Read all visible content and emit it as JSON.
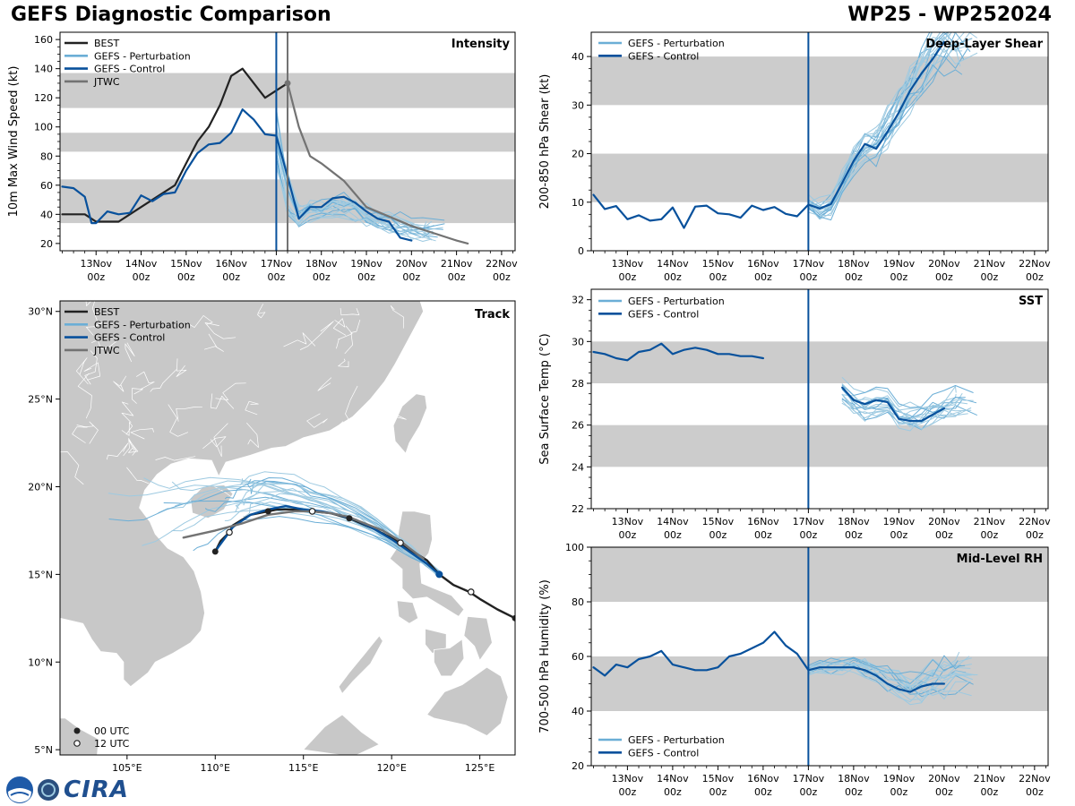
{
  "header": {
    "title": "GEFS Diagnostic Comparison",
    "storm": "WP25 - WP252024"
  },
  "logo": {
    "text": "CIRA"
  },
  "colors": {
    "best": "#222222",
    "pert": "#6baed6",
    "pert_thin": "#9ecae1",
    "control": "#08519c",
    "jtwc": "#737373",
    "band": "#cccccc",
    "land": "#c8c8c8"
  },
  "time_axis": {
    "ticks": [
      13,
      14,
      15,
      16,
      17,
      18,
      19,
      20,
      21,
      22
    ],
    "labels": [
      "13Nov",
      "14Nov",
      "15Nov",
      "16Nov",
      "17Nov",
      "18Nov",
      "19Nov",
      "20Nov",
      "21Nov",
      "22Nov"
    ],
    "sublabel": "00z",
    "range": [
      12.2,
      22.3
    ],
    "current": 17.0,
    "jtwc_current": 17.25
  },
  "chart_data": [
    {
      "id": "intensity",
      "type": "line",
      "title": "Intensity",
      "ylabel": "10m Max Wind Speed (kt)",
      "ylim": [
        15,
        165
      ],
      "yticks": [
        20,
        40,
        60,
        80,
        100,
        120,
        140,
        160
      ],
      "bands": [
        [
          34,
          64
        ],
        [
          83,
          96
        ],
        [
          113,
          137
        ]
      ],
      "legend": [
        "BEST",
        "GEFS - Perturbation",
        "GEFS - Control",
        "JTWC"
      ],
      "series": [
        {
          "name": "BEST",
          "x": [
            12.25,
            12.5,
            12.75,
            13.0,
            13.25,
            13.5,
            13.75,
            14.0,
            14.25,
            14.5,
            14.75,
            15.0,
            15.25,
            15.5,
            15.75,
            16.0,
            16.25,
            16.5,
            16.75,
            17.0,
            17.25
          ],
          "y": [
            40,
            40,
            40,
            35,
            35,
            35,
            40,
            45,
            50,
            55,
            60,
            75,
            90,
            100,
            115,
            135,
            140,
            130,
            120,
            125,
            130
          ]
        },
        {
          "name": "GEFS - Control",
          "x": [
            12.25,
            12.5,
            12.75,
            12.9,
            13.0,
            13.25,
            13.5,
            13.75,
            14.0,
            14.25,
            14.5,
            14.75,
            15.0,
            15.25,
            15.5,
            15.75,
            16.0,
            16.25,
            16.5,
            16.75,
            17.0,
            17.25,
            17.5,
            17.75,
            18.0,
            18.25,
            18.5,
            18.75,
            19.0,
            19.25,
            19.5,
            19.75,
            20.0
          ],
          "y": [
            59,
            58,
            52,
            34,
            34,
            42,
            40,
            41,
            53,
            49,
            54,
            55,
            70,
            82,
            88,
            89,
            96,
            112,
            105,
            95,
            94,
            66,
            37,
            45,
            45,
            51,
            52,
            48,
            42,
            37,
            35,
            24,
            22
          ]
        },
        {
          "name": "JTWC",
          "x": [
            17.25,
            17.5,
            17.75,
            18.0,
            18.5,
            19.0,
            20.0,
            21.0,
            21.25
          ],
          "y": [
            130,
            100,
            80,
            75,
            63,
            45,
            32,
            22,
            20
          ]
        }
      ]
    },
    {
      "id": "shear",
      "type": "line",
      "title": "Deep-Layer Shear",
      "ylabel": "200-850 hPa Shear (kt)",
      "ylim": [
        0,
        45
      ],
      "yticks": [
        0,
        10,
        20,
        30,
        40
      ],
      "bands": [
        [
          10,
          20
        ],
        [
          30,
          40
        ]
      ],
      "legend": [
        "GEFS - Perturbation",
        "GEFS - Control"
      ],
      "series": [
        {
          "name": "GEFS - Control",
          "x": [
            12.25,
            12.5,
            12.75,
            13.0,
            13.25,
            13.5,
            13.75,
            14.0,
            14.25,
            14.5,
            14.75,
            15.0,
            15.25,
            15.5,
            15.75,
            16.0,
            16.25,
            16.5,
            16.75,
            17.0,
            17.25,
            17.5,
            17.75,
            18.0,
            18.25,
            18.5,
            18.75,
            19.0,
            19.25,
            19.5,
            19.75,
            20.0
          ],
          "y": [
            11.5,
            8.6,
            9.2,
            6.5,
            7.3,
            6.2,
            6.5,
            8.9,
            4.7,
            9.1,
            9.3,
            7.7,
            7.5,
            6.8,
            9.3,
            8.4,
            9.0,
            7.6,
            7.1,
            9.5,
            8.7,
            9.6,
            14.0,
            18.5,
            22.0,
            21.0,
            24.5,
            28.5,
            33.0,
            36.5,
            39.5,
            43.0
          ]
        }
      ]
    },
    {
      "id": "sst",
      "type": "line",
      "title": "SST",
      "ylabel": "Sea Surface Temp (°C)",
      "ylim": [
        22,
        32.5
      ],
      "yticks": [
        22,
        24,
        26,
        28,
        30,
        32
      ],
      "bands": [
        [
          24,
          26
        ],
        [
          28,
          30
        ]
      ],
      "legend": [
        "GEFS - Perturbation",
        "GEFS - Control"
      ],
      "series": [
        {
          "name": "GEFS - Control (analysis)",
          "x": [
            12.25,
            12.5,
            12.75,
            13.0,
            13.25,
            13.5,
            13.75,
            14.0,
            14.25,
            14.5,
            14.75,
            15.0,
            15.25,
            15.5,
            15.75,
            16.0
          ],
          "y": [
            29.5,
            29.4,
            29.2,
            29.1,
            29.5,
            29.6,
            29.9,
            29.4,
            29.6,
            29.7,
            29.6,
            29.4,
            29.4,
            29.3,
            29.3,
            29.2
          ]
        },
        {
          "name": "GEFS - Control (forecast)",
          "x": [
            17.75,
            18.0,
            18.25,
            18.5,
            18.75,
            19.0,
            19.25,
            19.5,
            19.75,
            20.0
          ],
          "y": [
            27.8,
            27.2,
            27.0,
            27.2,
            27.1,
            26.3,
            26.2,
            26.2,
            26.5,
            26.8
          ]
        }
      ]
    },
    {
      "id": "rh",
      "type": "line",
      "title": "Mid-Level RH",
      "ylabel": "700-500 hPa Humidity (%)",
      "ylim": [
        20,
        100
      ],
      "yticks": [
        20,
        40,
        60,
        80,
        100
      ],
      "bands": [
        [
          40,
          60
        ],
        [
          80,
          100
        ]
      ],
      "legend": [
        "GEFS - Perturbation",
        "GEFS - Control"
      ],
      "series": [
        {
          "name": "GEFS - Control",
          "x": [
            12.25,
            12.5,
            12.75,
            13.0,
            13.25,
            13.5,
            13.75,
            14.0,
            14.25,
            14.5,
            14.75,
            15.0,
            15.25,
            15.5,
            15.75,
            16.0,
            16.25,
            16.5,
            16.75,
            17.0,
            17.25,
            17.5,
            17.75,
            18.0,
            18.25,
            18.5,
            18.75,
            19.0,
            19.25,
            19.5,
            19.75,
            20.0
          ],
          "y": [
            56,
            53,
            57,
            56,
            59,
            60,
            62,
            57,
            56,
            55,
            55,
            56,
            60,
            61,
            63,
            65,
            69,
            64,
            61,
            55,
            56,
            56,
            56,
            56,
            55,
            53,
            50,
            48,
            47,
            49,
            50,
            50
          ]
        }
      ]
    },
    {
      "id": "track",
      "type": "scatter",
      "title": "Track",
      "xlim": [
        101.2,
        127
      ],
      "ylim": [
        4.7,
        30.6
      ],
      "xticks": [
        105,
        110,
        115,
        120,
        125
      ],
      "xlabels": [
        "105°E",
        "110°E",
        "115°E",
        "120°E",
        "125°E"
      ],
      "yticks": [
        5,
        10,
        15,
        20,
        25,
        30
      ],
      "ylabels": [
        "5°N",
        "10°N",
        "15°N",
        "20°N",
        "25°N",
        "30°N"
      ],
      "legend": [
        "BEST",
        "GEFS - Perturbation",
        "GEFS - Control",
        "JTWC"
      ],
      "marker_legend": [
        "00 UTC",
        "12 UTC"
      ],
      "series": [
        {
          "name": "BEST",
          "lon": [
            127.0,
            126.0,
            125.0,
            124.4,
            123.5,
            122.7,
            122.0,
            121.2,
            120.5,
            119.0,
            117.6,
            116.5,
            115.5,
            114.5,
            113.5,
            113.0,
            112.0,
            111.5,
            111.0,
            110.8,
            110.3,
            110.0
          ],
          "lat": [
            12.5,
            13.0,
            13.6,
            14.0,
            14.4,
            15.0,
            15.8,
            16.3,
            16.8,
            17.6,
            18.2,
            18.5,
            18.6,
            18.7,
            18.7,
            18.6,
            18.4,
            18.1,
            17.8,
            17.4,
            16.9,
            16.3
          ]
        },
        {
          "name": "GEFS - Control",
          "lon": [
            122.7,
            122.0,
            121.0,
            120.0,
            119.0,
            118.0,
            117.0,
            116.0,
            115.0,
            114.0,
            113.0,
            112.0,
            111.0,
            110.5,
            110.2,
            110.0
          ],
          "lat": [
            15.0,
            15.6,
            16.3,
            17.0,
            17.6,
            18.1,
            18.4,
            18.6,
            18.7,
            18.9,
            18.7,
            18.4,
            17.7,
            17.0,
            16.6,
            16.3
          ]
        },
        {
          "name": "JTWC",
          "lon": [
            121.8,
            121.0,
            120.5,
            119.5,
            118.5,
            117.5,
            116.5,
            115.5,
            114.5,
            113.0,
            111.5,
            110.0,
            108.2
          ],
          "lat": [
            15.9,
            16.5,
            16.9,
            17.5,
            17.9,
            18.3,
            18.5,
            18.6,
            18.6,
            18.4,
            17.9,
            17.5,
            17.1
          ]
        }
      ],
      "points_00utc": [
        [
          127.0,
          12.5
        ],
        [
          122.7,
          15.0
        ],
        [
          117.6,
          18.2
        ],
        [
          113.0,
          18.6
        ],
        [
          110.0,
          16.3
        ]
      ],
      "points_12utc": [
        [
          124.5,
          14.0
        ],
        [
          120.5,
          16.8
        ],
        [
          115.5,
          18.6
        ],
        [
          110.8,
          17.4
        ]
      ]
    }
  ]
}
